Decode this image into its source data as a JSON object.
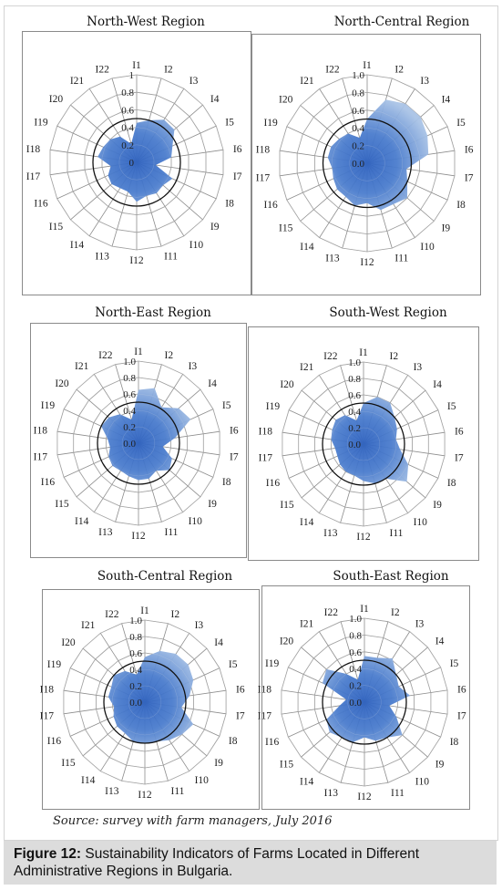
{
  "chart_data": [
    {
      "type": "radar",
      "title": "North-West Region",
      "axes": [
        "I1",
        "I2",
        "I3",
        "I4",
        "I5",
        "I6",
        "I7",
        "I8",
        "I9",
        "I10",
        "I11",
        "I12",
        "I13",
        "I14",
        "I15",
        "I16",
        "I17",
        "I18",
        "I19",
        "I20",
        "I21",
        "I22"
      ],
      "radial_ticks": [
        "0",
        "0.2",
        "0.4",
        "0.6",
        "0.8",
        "1"
      ],
      "rlim": [
        0,
        1
      ],
      "values": [
        0.45,
        0.5,
        0.58,
        0.57,
        0.45,
        0.4,
        0.22,
        0.45,
        0.4,
        0.42,
        0.4,
        0.45,
        0.35,
        0.35,
        0.38,
        0.36,
        0.3,
        0.45,
        0.42,
        0.4,
        0.35,
        0.22
      ],
      "reference_circle": 0.5
    },
    {
      "type": "radar",
      "title": "North-Central Region",
      "axes": [
        "I1",
        "I2",
        "I3",
        "I4",
        "I5",
        "I6",
        "I7",
        "I8",
        "I9",
        "I10",
        "I11",
        "I12",
        "I13",
        "I14",
        "I15",
        "I16",
        "I17",
        "I18",
        "I19",
        "I20",
        "I21",
        "I22"
      ],
      "radial_ticks": [
        "0.0",
        "0.2",
        "0.4",
        "0.6",
        "0.8",
        "1.0"
      ],
      "rlim": [
        0,
        1
      ],
      "values": [
        0.5,
        0.75,
        0.8,
        0.8,
        0.75,
        0.7,
        0.45,
        0.5,
        0.6,
        0.55,
        0.55,
        0.45,
        0.5,
        0.45,
        0.45,
        0.42,
        0.4,
        0.45,
        0.45,
        0.42,
        0.4,
        0.3
      ],
      "reference_circle": 0.5
    },
    {
      "type": "radar",
      "title": "North-East Region",
      "axes": [
        "I1",
        "I2",
        "I3",
        "I4",
        "I5",
        "I6",
        "I7",
        "I8",
        "I9",
        "I10",
        "I11",
        "I12",
        "I13",
        "I14",
        "I15",
        "I16",
        "I17",
        "I18",
        "I19",
        "I20",
        "I21",
        "I22"
      ],
      "radial_ticks": [
        "0.0",
        "0.2",
        "0.4",
        "0.6",
        "0.8",
        "1.0"
      ],
      "rlim": [
        0,
        1
      ],
      "values": [
        0.65,
        0.7,
        0.52,
        0.65,
        0.7,
        0.45,
        0.3,
        0.45,
        0.5,
        0.4,
        0.45,
        0.45,
        0.42,
        0.4,
        0.42,
        0.4,
        0.35,
        0.38,
        0.5,
        0.48,
        0.42,
        0.3
      ],
      "reference_circle": 0.5
    },
    {
      "type": "radar",
      "title": "South-West Region",
      "axes": [
        "I1",
        "I2",
        "I3",
        "I4",
        "I5",
        "I6",
        "I7",
        "I8",
        "I9",
        "I10",
        "I11",
        "I12",
        "I13",
        "I14",
        "I15",
        "I16",
        "I17",
        "I18",
        "I19",
        "I20",
        "I21",
        "I22"
      ],
      "radial_ticks": [
        "0.0",
        "0.2",
        "0.4",
        "0.6",
        "0.8",
        "1.0"
      ],
      "rlim": [
        0,
        1
      ],
      "values": [
        0.5,
        0.6,
        0.6,
        0.5,
        0.45,
        0.4,
        0.45,
        0.6,
        0.7,
        0.5,
        0.5,
        0.45,
        0.4,
        0.4,
        0.38,
        0.35,
        0.35,
        0.4,
        0.42,
        0.45,
        0.42,
        0.3
      ],
      "reference_circle": 0.5
    },
    {
      "type": "radar",
      "title": "South-Central Region",
      "axes": [
        "I1",
        "I2",
        "I3",
        "I4",
        "I5",
        "I6",
        "I7",
        "I8",
        "I9",
        "I10",
        "I11",
        "I12",
        "I13",
        "I14",
        "I15",
        "I16",
        "I17",
        "I18",
        "I19",
        "I20",
        "I21",
        "I22"
      ],
      "radial_ticks": [
        "0.0",
        "0.2",
        "0.4",
        "0.6",
        "0.8",
        "1.0"
      ],
      "rlim": [
        0,
        1
      ],
      "values": [
        0.55,
        0.65,
        0.7,
        0.7,
        0.65,
        0.55,
        0.45,
        0.65,
        0.6,
        0.55,
        0.5,
        0.5,
        0.5,
        0.45,
        0.45,
        0.42,
        0.38,
        0.45,
        0.45,
        0.5,
        0.45,
        0.35
      ],
      "reference_circle": 0.5
    },
    {
      "type": "radar",
      "title": "South-East Region",
      "axes": [
        "I1",
        "I2",
        "I3",
        "I4",
        "I5",
        "I6",
        "I7",
        "I8",
        "I9",
        "I10",
        "I11",
        "I12",
        "I13",
        "I14",
        "I15",
        "I16",
        "I17",
        "I18",
        "I19",
        "I20",
        "I21",
        "I22"
      ],
      "radial_ticks": [
        "0.0",
        "0.2",
        "0.4",
        "0.6",
        "0.8",
        "1.0"
      ],
      "rlim": [
        0,
        1
      ],
      "values": [
        0.55,
        0.55,
        0.62,
        0.5,
        0.45,
        0.55,
        0.3,
        0.42,
        0.6,
        0.5,
        0.48,
        0.42,
        0.5,
        0.5,
        0.55,
        0.5,
        0.3,
        0.22,
        0.55,
        0.6,
        0.4,
        0.28
      ],
      "reference_circle": 0.5
    }
  ],
  "source": "Source: survey with farm managers, July 2016",
  "caption": {
    "label": "Figure 12:",
    "text": " Sustainability Indicators of Farms Located in Different Administrative Regions in Bulgaria."
  },
  "colors": {
    "fill_light": "#a9c3e6",
    "fill_dark": "#2e62c0",
    "grid": "#8c8c8c",
    "reference": "#111111"
  }
}
